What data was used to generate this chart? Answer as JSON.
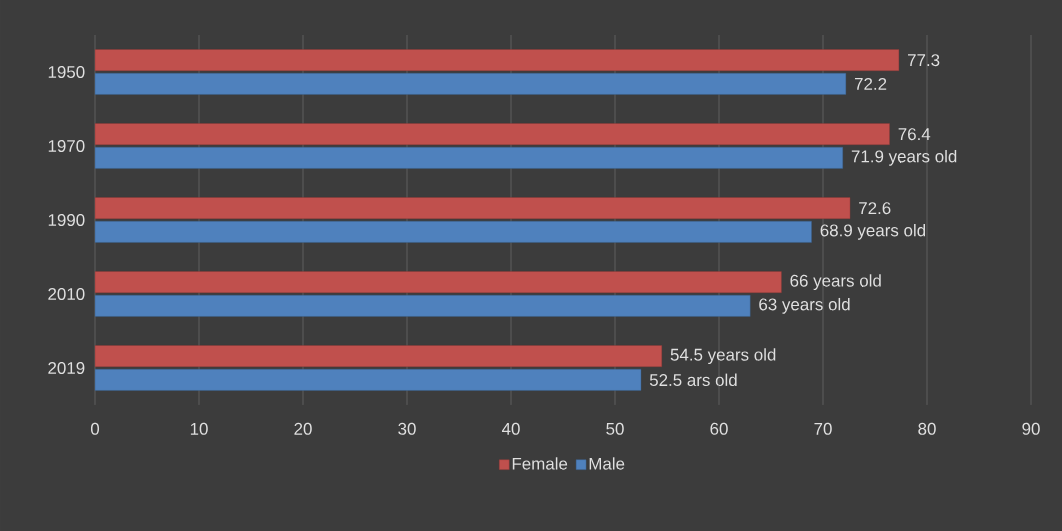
{
  "chart_data": {
    "type": "bar",
    "orientation": "horizontal",
    "categories": [
      "1950",
      "1970",
      "1990",
      "2010",
      "2019"
    ],
    "series": [
      {
        "name": "Female",
        "color": "#c0504d",
        "values": [
          77.3,
          76.4,
          72.6,
          66,
          54.5
        ],
        "value_labels": [
          "77.3",
          "76.4",
          "72.6",
          "66 years old",
          "54.5 years old"
        ]
      },
      {
        "name": "Male",
        "color": "#4f81bd",
        "values": [
          72.2,
          71.9,
          68.9,
          63,
          52.5
        ],
        "value_labels": [
          "72.2",
          "71.9 years old",
          "68.9 years old",
          "63 years old",
          "52.5 ars old"
        ]
      }
    ],
    "xlim": [
      0,
      90
    ],
    "xticks": [
      0,
      10,
      20,
      30,
      40,
      50,
      60,
      70,
      80,
      90
    ],
    "grid": "x",
    "legend": "bottom"
  }
}
